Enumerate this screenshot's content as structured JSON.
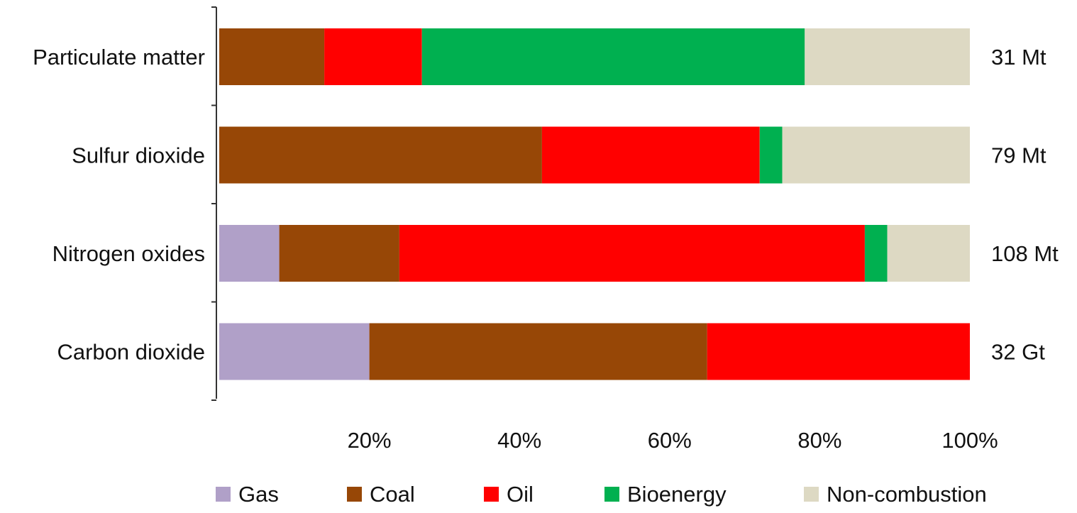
{
  "chart_data": {
    "type": "bar",
    "orientation": "horizontal",
    "stacked": true,
    "normalized": true,
    "categories": [
      "Particulate matter",
      "Sulfur dioxide",
      "Nitrogen oxides",
      "Carbon dioxide"
    ],
    "totals": [
      "31 Mt",
      "79 Mt",
      "108 Mt",
      "32 Gt"
    ],
    "series": [
      {
        "name": "Gas",
        "color": "#B0A0C8",
        "values": [
          0,
          0,
          8,
          20
        ]
      },
      {
        "name": "Coal",
        "color": "#974706",
        "values": [
          14,
          43,
          16,
          45
        ]
      },
      {
        "name": "Oil",
        "color": "#FF0000",
        "values": [
          13,
          29,
          62,
          35
        ]
      },
      {
        "name": "Bioenergy",
        "color": "#00B050",
        "values": [
          51,
          3,
          3,
          0
        ]
      },
      {
        "name": "Non-combustion",
        "color": "#DDD9C3",
        "values": [
          22,
          25,
          11,
          0
        ]
      }
    ],
    "x_ticks": [
      "20%",
      "40%",
      "60%",
      "80%",
      "100%"
    ],
    "xlim": [
      0,
      100
    ],
    "title": "",
    "xlabel": "",
    "ylabel": "",
    "grid": false,
    "legend_position": "bottom"
  }
}
